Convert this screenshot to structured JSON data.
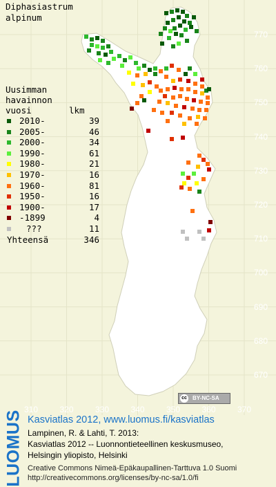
{
  "species": {
    "line1": "Diphasiastrum",
    "line2": "alpinum"
  },
  "legend": {
    "header": [
      "Uusimman",
      "havainnon",
      "vuosi"
    ],
    "count_header": "lkm",
    "rows": [
      {
        "label": "2010-",
        "count": "39",
        "color": "#0a5a0a"
      },
      {
        "label": "2005-",
        "count": "46",
        "color": "#18841a"
      },
      {
        "label": "2000-",
        "count": "34",
        "color": "#2db82d"
      },
      {
        "label": "1990-",
        "count": "61",
        "color": "#5cef3c"
      },
      {
        "label": "1980-",
        "count": "21",
        "color": "#ffff00"
      },
      {
        "label": "1970-",
        "count": "16",
        "color": "#ffc000"
      },
      {
        "label": "1960-",
        "count": "81",
        "color": "#ff7010"
      },
      {
        "label": "1950-",
        "count": "16",
        "color": "#e03000"
      },
      {
        "label": "1900-",
        "count": "17",
        "color": "#c00000"
      },
      {
        "label": "-1899",
        "count": "4",
        "color": "#800000"
      },
      {
        "label": "???",
        "count": "11",
        "color": "#c0c0c0"
      }
    ],
    "total_label": "Yhteensä",
    "total_count": "346"
  },
  "grid": {
    "y_labels": [
      "770",
      "760",
      "750",
      "740",
      "730",
      "720",
      "710",
      "700",
      "690",
      "680",
      "670"
    ],
    "x_labels": [
      "310",
      "320",
      "330",
      "340",
      "350",
      "360",
      "370"
    ]
  },
  "license_badge": {
    "cc": "cc",
    "text": "BY-NC-SA"
  },
  "footer": {
    "logo": "LUOMUS",
    "site": "Kasviatlas 2012, www.luomus.fi/kasviatlas",
    "citation": [
      "Lampinen, R. & Lahti, T. 2013:",
      "Kasviatlas 2012 -- Luonnontieteellinen keskusmuseo,",
      "Helsingin yliopisto, Helsinki"
    ],
    "license": [
      "Creative Commons Nimeä-Epäkaupallinen-Tarttuva 1.0 Suomi",
      "http://creativecommons.org/licenses/by-nc-sa/1.0/fi"
    ]
  }
}
